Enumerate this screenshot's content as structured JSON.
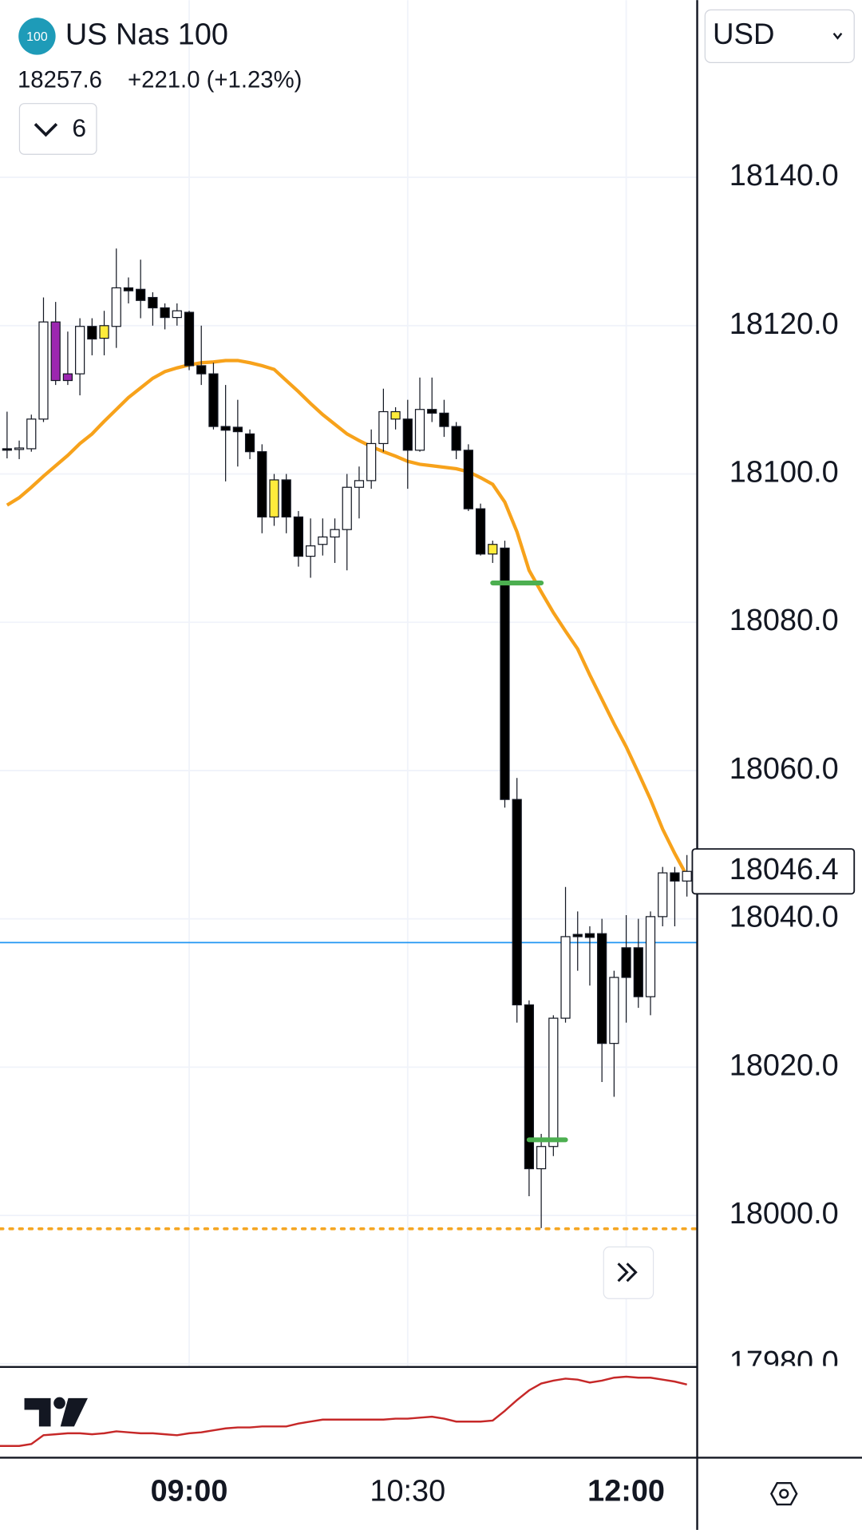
{
  "chart_data": {
    "type": "candlestick",
    "badge": "100",
    "title": "US Nas 100",
    "price": 18257.6,
    "change": "+221.0 (+1.23%)",
    "indicator_count": 6,
    "currency": "USD",
    "categories": [
      null,
      null,
      null,
      null,
      null,
      null,
      null,
      null,
      null,
      null,
      null,
      null,
      null,
      null,
      null,
      "09:00",
      null,
      null,
      null,
      null,
      null,
      null,
      null,
      null,
      null,
      null,
      null,
      null,
      null,
      null,
      null,
      null,
      null,
      "10:30",
      null,
      null,
      null,
      null,
      null,
      null,
      null,
      null,
      null,
      null,
      null,
      null,
      null,
      null,
      null,
      null,
      null,
      "12:00",
      null,
      null,
      null,
      null,
      null
    ],
    "open": [
      18103.4,
      18103.3,
      18103.4,
      18107.4,
      18120.5,
      18113.5,
      18113.5,
      18119.9,
      18120,
      18119.9,
      18125.1,
      18124.9,
      18123.8,
      18122.4,
      18121.1,
      18121.8,
      18114.6,
      18113.5,
      18106.4,
      18106.3,
      18105.4,
      18103,
      18099.2,
      18099.2,
      18094.2,
      18088.9,
      18090.5,
      18091.5,
      18092.5,
      18098.2,
      18099.1,
      18104.1,
      18108.4,
      18107.4,
      18103.2,
      18108.7,
      18108.2,
      18106.4,
      18103.2,
      18095.3,
      18089.2,
      18090,
      18056.1,
      18028.4,
      18006.3,
      18009.3,
      18026.6,
      18037.9,
      18038,
      18038,
      18023.2,
      18036.1,
      18036.1,
      18029.5,
      18040.3,
      18046.2,
      18045.1
    ],
    "high": [
      18108.4,
      18104.5,
      18108,
      18123.8,
      18123.2,
      18119.2,
      18121,
      18121,
      18122,
      18130.4,
      18126.5,
      18128.9,
      18124.5,
      18123,
      18123,
      18122,
      18120,
      18115,
      18112,
      18110,
      18106,
      18104,
      18100,
      18100,
      18095,
      18094,
      18094,
      18094,
      18100,
      18101,
      18106,
      18111.5,
      18109,
      18110,
      18113,
      18113,
      18110,
      18107,
      18104,
      18096,
      18091,
      18091,
      18059,
      18029,
      18011,
      18027,
      18044.3,
      18041,
      18039,
      18040,
      18033,
      18040.5,
      18040,
      18041,
      18047,
      18047,
      18048.6
    ],
    "low": [
      18102.1,
      18102,
      18103,
      18107,
      18112,
      18112,
      18110.6,
      18116,
      18116,
      18117,
      18123,
      18121,
      18120,
      18119.5,
      18120,
      18114,
      18112,
      18106,
      18099,
      18101,
      18102,
      18092,
      18093,
      18092,
      18087.5,
      18086,
      18089,
      18088,
      18087,
      18094,
      18098,
      18103,
      18106,
      18098,
      18103,
      18107,
      18105,
      18102,
      18095,
      18089,
      18088,
      18055,
      18026,
      18002.6,
      17998.3,
      18008,
      18026,
      18033,
      18031,
      18018,
      18016,
      18026,
      18028,
      18027,
      18039,
      18039,
      18043
    ],
    "close": [
      18103.3,
      18103.5,
      18107.4,
      18120.5,
      18112.6,
      18112.6,
      18119.9,
      18118.2,
      18118.3,
      18125.1,
      18124.7,
      18123.4,
      18122.4,
      18121.1,
      18122,
      18114.6,
      18113.5,
      18106.4,
      18105.9,
      18105.7,
      18103,
      18094.2,
      18094.2,
      18094.2,
      18088.9,
      18090.3,
      18091.5,
      18092.5,
      18098.2,
      18099.1,
      18104.1,
      18108.4,
      18107.4,
      18103.2,
      18108.7,
      18108.2,
      18106.4,
      18103.2,
      18095.3,
      18089.2,
      18090.5,
      18056.1,
      18028.4,
      18006.3,
      18009.3,
      18026.6,
      18037.6,
      18037.6,
      18037.5,
      18023.2,
      18032.1,
      18032.1,
      18029.5,
      18040.3,
      18046.2,
      18045.1,
      18046.4
    ],
    "colors": [
      "#000000",
      "#ffffff",
      "#ffffff",
      "#ffffff",
      "#9c27b0",
      "#9c27b0",
      "#ffffff",
      "#000000",
      "#ffeb3b",
      "#ffffff",
      "#000000",
      "#000000",
      "#000000",
      "#000000",
      "#ffffff",
      "#000000",
      "#000000",
      "#000000",
      "#000000",
      "#000000",
      "#000000",
      "#000000",
      "#ffeb3b",
      "#000000",
      "#000000",
      "#ffffff",
      "#ffffff",
      "#ffffff",
      "#ffffff",
      "#ffffff",
      "#ffffff",
      "#ffffff",
      "#ffeb3b",
      "#000000",
      "#ffffff",
      "#000000",
      "#000000",
      "#000000",
      "#000000",
      "#000000",
      "#ffeb3b",
      "#000000",
      "#000000",
      "#000000",
      "#ffffff",
      "#ffffff",
      "#ffffff",
      "#000000",
      "#000000",
      "#000000",
      "#ffffff",
      "#000000",
      "#000000",
      "#ffffff",
      "#ffffff",
      "#000000",
      "#ffffff"
    ],
    "ma": {
      "color": "#f7a21b",
      "values": [
        18095.8,
        18096.8,
        18098.2,
        18099.7,
        18101.1,
        18102.5,
        18104.1,
        18105.4,
        18107.1,
        18108.7,
        18110.3,
        18111.6,
        18112.9,
        18113.8,
        18114.3,
        18114.7,
        18115,
        18115.1,
        18115.3,
        18115.3,
        18115,
        18114.6,
        18114.1,
        18112.6,
        18111.1,
        18109.5,
        18108,
        18106.7,
        18105.4,
        18104.5,
        18103.7,
        18103,
        18102.4,
        18101.7,
        18101.3,
        18101.1,
        18100.9,
        18100.7,
        18100.3,
        18099.5,
        18098.6,
        18096.2,
        18092.2,
        18087,
        18084.1,
        18081.3,
        18078.8,
        18076.4,
        18072.9,
        18069.6,
        18066.3,
        18063.2,
        18059.7,
        18056.1,
        18052.1,
        18048.8,
        18045.8
      ]
    },
    "levels": [
      {
        "value": 18085.3,
        "start": 40,
        "end": 44,
        "color": "#4caf50"
      },
      {
        "value": 18010.2,
        "start": 43,
        "end": 46,
        "color": "#4caf50"
      }
    ],
    "hlines": [
      {
        "value": 18036.8,
        "color": "#2196f3",
        "dash": false
      },
      {
        "value": 17998.2,
        "color": "#f5a623",
        "dash": true
      }
    ],
    "ylim": [
      17979.7,
      18163.9
    ],
    "yticks": [
      {
        "value": 17980,
        "label": "17980.0"
      },
      {
        "value": 18000,
        "label": "18000.0"
      },
      {
        "value": 18020,
        "label": "18020.0"
      },
      {
        "value": 18040,
        "label": "18040.0"
      },
      {
        "value": 18060,
        "label": "18060.0"
      },
      {
        "value": 18080,
        "label": "18080.0"
      },
      {
        "value": 18100,
        "label": "18100.0"
      },
      {
        "value": 18120,
        "label": "18120.0"
      },
      {
        "value": 18140,
        "label": "18140.0"
      }
    ],
    "grid": true,
    "indicator": {
      "color": "#c62828",
      "ylim": [
        0,
        93
      ],
      "values": [
        11,
        11,
        13,
        22,
        23,
        24,
        24,
        23,
        24,
        26,
        25,
        24,
        24,
        23,
        22,
        24,
        25,
        27,
        29,
        30,
        30,
        31,
        31,
        31,
        34,
        36,
        38,
        38,
        38,
        38,
        38,
        38,
        39,
        39,
        40,
        41,
        39,
        36,
        36,
        36,
        37,
        47,
        58,
        68,
        75,
        78,
        80,
        79,
        76,
        78,
        81,
        82,
        81,
        81,
        79,
        77,
        74
      ]
    }
  }
}
